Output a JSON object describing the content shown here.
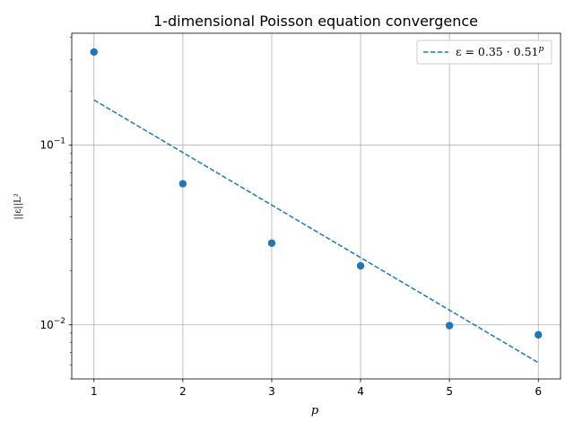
{
  "chart_data": {
    "type": "scatter",
    "title": "1-dimensional Poisson equation convergence",
    "xlabel": "p",
    "ylabel": "||ε||L²",
    "y_scale": "log",
    "xlim": [
      0.75,
      6.25
    ],
    "ylim": [
      0.005,
      0.42
    ],
    "x_ticks": [
      1,
      2,
      3,
      4,
      5,
      6
    ],
    "y_major_ticks": [
      {
        "value": 0.1,
        "base": "10",
        "exp": "−1"
      },
      {
        "value": 0.01,
        "base": "10",
        "exp": "−2"
      }
    ],
    "y_minor_ticks": [
      0.005,
      0.006,
      0.007,
      0.008,
      0.009,
      0.02,
      0.03,
      0.04,
      0.05,
      0.06,
      0.07,
      0.08,
      0.09,
      0.2,
      0.3,
      0.4
    ],
    "grid": true,
    "legend_position": "top-right",
    "color": "#1f77b4",
    "series": [
      {
        "type": "scatter",
        "x": [
          1,
          2,
          3,
          4,
          5,
          6
        ],
        "y": [
          0.33,
          0.061,
          0.0285,
          0.0213,
          0.0099,
          0.0088
        ]
      },
      {
        "type": "line",
        "style": "dashed",
        "name_prefix": "ε = 0.35 · 0.51",
        "name_exp": "p",
        "a": 0.35,
        "b": 0.51,
        "x": [
          1,
          6
        ]
      }
    ]
  }
}
